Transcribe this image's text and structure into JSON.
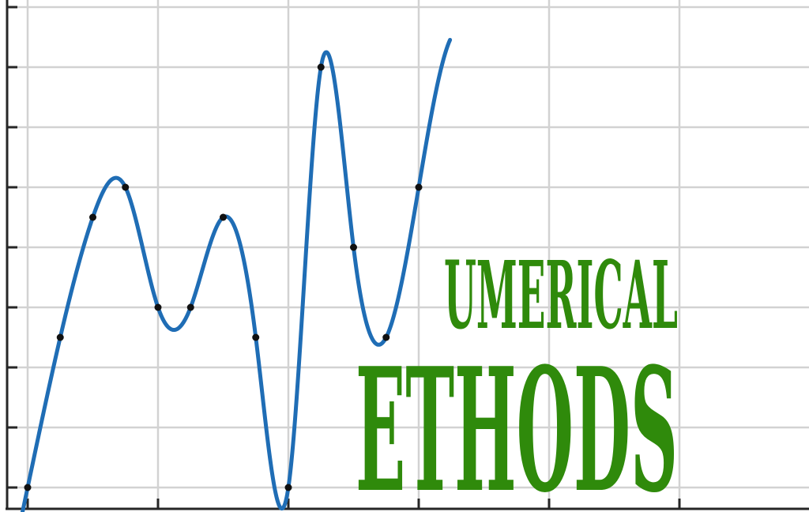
{
  "logo": {
    "word_top": "UMERICAL",
    "word_bottom": "ETHODS",
    "text_color": "#2f8a0b",
    "curve_color": "#1f6db5",
    "point_color": "#111111",
    "grid_color": "#d2d2d2",
    "axis_color": "#262626"
  },
  "plot": {
    "grid": true,
    "x_gridlines": [
      0,
      1,
      2,
      3,
      4,
      5
    ],
    "y_gridlines": [
      0,
      1,
      2,
      3,
      4,
      5,
      6,
      7,
      8
    ],
    "points": [
      [
        0,
        0
      ],
      [
        0.25,
        2.5
      ],
      [
        0.5,
        4.5
      ],
      [
        0.75,
        5
      ],
      [
        1,
        3
      ],
      [
        1.25,
        3
      ],
      [
        1.5,
        4.5
      ],
      [
        1.75,
        2.5
      ],
      [
        2,
        0
      ],
      [
        2.25,
        7
      ],
      [
        2.5,
        4
      ],
      [
        2.75,
        2.5
      ],
      [
        3,
        5
      ]
    ]
  }
}
